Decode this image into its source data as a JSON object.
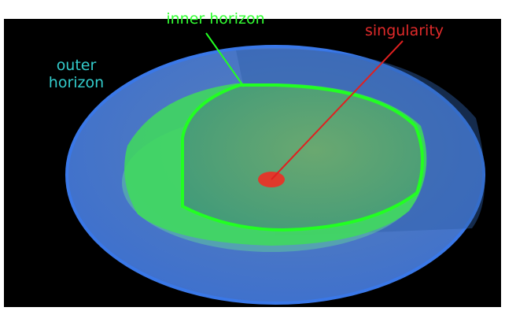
{
  "labels": {
    "inner": "inner horizon",
    "singularity": "singularity",
    "outer": [
      "outer",
      "horizon"
    ]
  }
}
